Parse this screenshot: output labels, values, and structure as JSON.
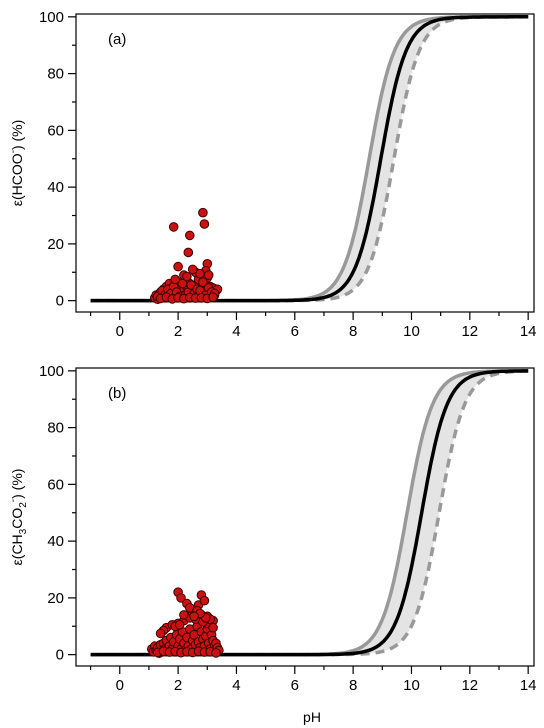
{
  "chart_data": [
    {
      "type": "line",
      "panel_label": "(a)",
      "ylabel_main": "ε(HCOO",
      "ylabel_sup": "-",
      "ylabel_end": ") (%)",
      "xlabel": "",
      "xlim": [
        -1.5,
        14.2
      ],
      "ylim": [
        -4,
        101
      ],
      "xticks": [
        0,
        2,
        4,
        6,
        8,
        10,
        12,
        14
      ],
      "yticks": [
        0,
        20,
        40,
        60,
        80,
        100
      ],
      "grid": false,
      "curves": {
        "lower_pka": 8.55,
        "central_pka": 8.95,
        "upper_pka": 9.4,
        "band_fill": "#e4e4e4",
        "central_color": "#000000",
        "bound_color": "#999999"
      },
      "points": {
        "color": "#cc1111",
        "edge": "#3a0000",
        "x": [
          1.2,
          1.25,
          1.3,
          1.35,
          1.4,
          1.45,
          1.5,
          1.5,
          1.55,
          1.6,
          1.6,
          1.65,
          1.7,
          1.7,
          1.75,
          1.8,
          1.8,
          1.85,
          1.9,
          1.9,
          1.95,
          2.0,
          2.0,
          2.05,
          2.1,
          2.1,
          2.15,
          2.2,
          2.2,
          2.25,
          2.3,
          2.3,
          2.35,
          2.4,
          2.4,
          2.45,
          2.5,
          2.5,
          2.55,
          2.6,
          2.6,
          2.65,
          2.7,
          2.7,
          2.75,
          2.8,
          2.8,
          2.85,
          2.9,
          2.9,
          2.95,
          3.0,
          3.0,
          3.05,
          3.1,
          3.15,
          3.2,
          3.25,
          3.3,
          3.35,
          1.3,
          1.45,
          1.55,
          1.65,
          1.75,
          1.85,
          1.95,
          2.05,
          2.15,
          2.25,
          2.35,
          2.45,
          2.55,
          2.65,
          2.75,
          2.85,
          2.95,
          3.05,
          3.15,
          3.25,
          1.4,
          1.6,
          1.8,
          2.0,
          2.2,
          2.4,
          2.6,
          2.8,
          3.0,
          3.2,
          1.85,
          2.35,
          2.4,
          2.2,
          2.85,
          2.9,
          3.0,
          2.0,
          2.6,
          2.95,
          2.3,
          2.75,
          1.9,
          2.5,
          3.05
        ],
        "y": [
          1.0,
          2.0,
          0.5,
          1.5,
          3.0,
          1.0,
          2.0,
          4.0,
          1.0,
          2.5,
          5.0,
          1.5,
          3.0,
          6.0,
          2.0,
          1.0,
          4.5,
          2.5,
          3.5,
          7.0,
          1.0,
          2.0,
          5.0,
          3.0,
          1.5,
          4.0,
          6.5,
          2.0,
          3.5,
          1.0,
          5.0,
          2.5,
          4.0,
          1.0,
          6.0,
          3.0,
          2.0,
          4.5,
          1.5,
          5.5,
          3.0,
          2.0,
          7.5,
          4.0,
          1.0,
          3.0,
          5.0,
          2.0,
          6.0,
          3.5,
          1.0,
          4.0,
          8.0,
          2.5,
          5.0,
          3.0,
          4.5,
          2.0,
          3.5,
          4.0,
          1.5,
          3.5,
          2.0,
          4.0,
          2.5,
          5.0,
          3.0,
          1.5,
          6.0,
          2.0,
          3.0,
          5.5,
          2.5,
          4.0,
          3.5,
          6.5,
          2.0,
          4.5,
          3.0,
          2.5,
          0.8,
          1.2,
          0.6,
          1.0,
          0.7,
          1.1,
          0.9,
          1.0,
          0.8,
          1.2,
          26.0,
          17.0,
          23.0,
          9.0,
          31.0,
          27.0,
          13.0,
          12.0,
          10.0,
          10.5,
          8.5,
          9.5,
          7.5,
          11.0,
          9.0
        ]
      }
    },
    {
      "type": "line",
      "panel_label": "(b)",
      "ylabel_main": "ε(CH",
      "ylabel_sub1": "3",
      "ylabel_mid": "CO",
      "ylabel_sub2": "2",
      "ylabel_sup": "-",
      "ylabel_end": ") (%)",
      "xlabel": "pH",
      "xlim": [
        -1.5,
        14.2
      ],
      "ylim": [
        -4,
        101
      ],
      "xticks": [
        0,
        2,
        4,
        6,
        8,
        10,
        12,
        14
      ],
      "yticks": [
        0,
        20,
        40,
        60,
        80,
        100
      ],
      "grid": false,
      "curves": {
        "lower_pka": 9.85,
        "central_pka": 10.35,
        "upper_pka": 10.95,
        "band_fill": "#e4e4e4",
        "central_color": "#000000",
        "bound_color": "#999999"
      },
      "points": {
        "color": "#cc1111",
        "edge": "#3a0000",
        "x": [
          1.1,
          1.15,
          1.2,
          1.25,
          1.3,
          1.35,
          1.4,
          1.45,
          1.5,
          1.55,
          1.6,
          1.65,
          1.7,
          1.75,
          1.8,
          1.85,
          1.9,
          1.95,
          2.0,
          2.05,
          2.1,
          2.15,
          2.2,
          2.25,
          2.3,
          2.35,
          2.4,
          2.45,
          2.5,
          2.55,
          2.6,
          2.65,
          2.7,
          2.75,
          2.8,
          2.85,
          2.9,
          2.95,
          3.0,
          3.05,
          3.1,
          3.15,
          3.2,
          3.25,
          3.3,
          3.35,
          3.4,
          1.3,
          1.5,
          1.7,
          1.9,
          2.1,
          2.3,
          2.5,
          2.7,
          2.9,
          3.1,
          3.3,
          1.6,
          1.8,
          2.0,
          2.2,
          2.4,
          2.6,
          2.8,
          3.0,
          3.2,
          2.0,
          2.1,
          2.3,
          2.6,
          2.7,
          2.8,
          2.9,
          2.5,
          2.2,
          2.4,
          3.0,
          3.1,
          1.9,
          2.85,
          2.95,
          2.65,
          3.2,
          1.5,
          1.4,
          2.05,
          2.75,
          2.55
        ],
        "y": [
          2.0,
          1.0,
          3.0,
          1.5,
          2.5,
          0.5,
          3.5,
          1.0,
          4.0,
          2.0,
          5.0,
          1.5,
          3.0,
          6.0,
          2.0,
          4.5,
          1.0,
          7.0,
          3.0,
          5.5,
          2.0,
          8.0,
          4.0,
          1.5,
          6.0,
          3.0,
          9.0,
          2.0,
          5.0,
          7.0,
          3.5,
          10.0,
          4.5,
          2.5,
          8.0,
          5.5,
          3.0,
          6.5,
          9.0,
          4.0,
          2.0,
          7.0,
          5.0,
          3.0,
          4.0,
          2.5,
          1.5,
          0.8,
          1.2,
          0.9,
          1.1,
          0.7,
          1.0,
          0.8,
          1.2,
          0.9,
          1.0,
          0.6,
          9.5,
          10.5,
          11.0,
          12.0,
          13.0,
          12.5,
          14.0,
          13.5,
          12.0,
          22.0,
          20.0,
          18.0,
          16.0,
          17.5,
          21.0,
          19.0,
          15.0,
          14.0,
          16.5,
          11.0,
          12.5,
          10.0,
          11.5,
          13.0,
          15.5,
          9.5,
          8.5,
          7.5,
          10.5,
          14.5,
          13.5
        ]
      }
    }
  ]
}
